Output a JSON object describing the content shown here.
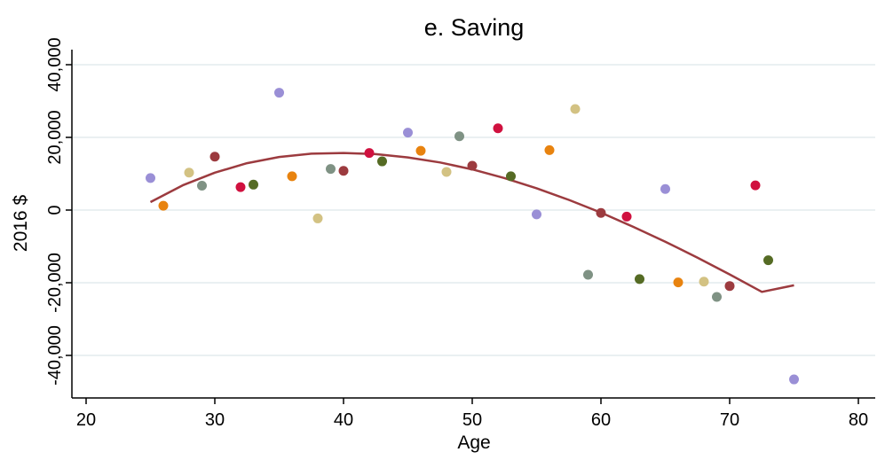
{
  "chart_data": {
    "type": "scatter",
    "title": "e. Saving",
    "xlabel": "Age",
    "ylabel": "2016 $",
    "xlim": [
      20,
      80
    ],
    "ylim": [
      -50000,
      45000
    ],
    "xticks": [
      "20",
      "30",
      "40",
      "50",
      "60",
      "70",
      "80"
    ],
    "yticks": [
      "-40,000",
      "-20,000",
      "0",
      "20,000",
      "40,000"
    ],
    "xtick_values": [
      20,
      30,
      40,
      50,
      60,
      70,
      80
    ],
    "ytick_values": [
      -40000,
      -20000,
      0,
      20000,
      40000
    ],
    "grid": true,
    "points": [
      {
        "x": 25,
        "y": 8800,
        "color": "#9a8fd6"
      },
      {
        "x": 26,
        "y": 1200,
        "color": "#e8830f"
      },
      {
        "x": 28,
        "y": 10300,
        "color": "#d3c283"
      },
      {
        "x": 29,
        "y": 6700,
        "color": "#7f9284"
      },
      {
        "x": 30,
        "y": 14700,
        "color": "#9c3b3f"
      },
      {
        "x": 32,
        "y": 6300,
        "color": "#d0113f"
      },
      {
        "x": 33,
        "y": 7000,
        "color": "#556b24"
      },
      {
        "x": 35,
        "y": 32300,
        "color": "#9a8fd6"
      },
      {
        "x": 36,
        "y": 9300,
        "color": "#e8830f"
      },
      {
        "x": 38,
        "y": -2300,
        "color": "#d3c283"
      },
      {
        "x": 39,
        "y": 11300,
        "color": "#7f9284"
      },
      {
        "x": 40,
        "y": 10800,
        "color": "#9c3b3f"
      },
      {
        "x": 42,
        "y": 15700,
        "color": "#d0113f"
      },
      {
        "x": 43,
        "y": 13400,
        "color": "#556b24"
      },
      {
        "x": 45,
        "y": 21300,
        "color": "#9a8fd6"
      },
      {
        "x": 46,
        "y": 16300,
        "color": "#e8830f"
      },
      {
        "x": 48,
        "y": 10500,
        "color": "#d3c283"
      },
      {
        "x": 49,
        "y": 20300,
        "color": "#7f9284"
      },
      {
        "x": 50,
        "y": 12200,
        "color": "#9c3b3f"
      },
      {
        "x": 52,
        "y": 22500,
        "color": "#d0113f"
      },
      {
        "x": 53,
        "y": 9300,
        "color": "#556b24"
      },
      {
        "x": 55,
        "y": -1200,
        "color": "#9a8fd6"
      },
      {
        "x": 56,
        "y": 16500,
        "color": "#e8830f"
      },
      {
        "x": 58,
        "y": 27800,
        "color": "#d3c283"
      },
      {
        "x": 59,
        "y": -17800,
        "color": "#7f9284"
      },
      {
        "x": 60,
        "y": -800,
        "color": "#9c3b3f"
      },
      {
        "x": 62,
        "y": -1800,
        "color": "#d0113f"
      },
      {
        "x": 63,
        "y": -19000,
        "color": "#556b24"
      },
      {
        "x": 65,
        "y": 5800,
        "color": "#9a8fd6"
      },
      {
        "x": 66,
        "y": -19900,
        "color": "#e8830f"
      },
      {
        "x": 68,
        "y": -19700,
        "color": "#d3c283"
      },
      {
        "x": 69,
        "y": -23900,
        "color": "#7f9284"
      },
      {
        "x": 70,
        "y": -20900,
        "color": "#9c3b3f"
      },
      {
        "x": 72,
        "y": 6800,
        "color": "#d0113f"
      },
      {
        "x": 73,
        "y": -13800,
        "color": "#556b24"
      },
      {
        "x": 75,
        "y": -46600,
        "color": "#9a8fd6"
      }
    ],
    "fit_line": {
      "color": "#9c3b3f",
      "x": [
        25,
        27.5,
        30,
        32.5,
        35,
        37.5,
        40,
        42.5,
        45,
        47.5,
        50,
        52.5,
        55,
        57.5,
        60,
        62.5,
        65,
        67.5,
        70,
        72.5,
        75
      ],
      "y": [
        2200,
        6800,
        10300,
        12900,
        14600,
        15500,
        15700,
        15400,
        14500,
        13100,
        11200,
        8800,
        6000,
        2800,
        -700,
        -4600,
        -8700,
        -13100,
        -17700,
        -22500,
        -20700
      ]
    }
  }
}
